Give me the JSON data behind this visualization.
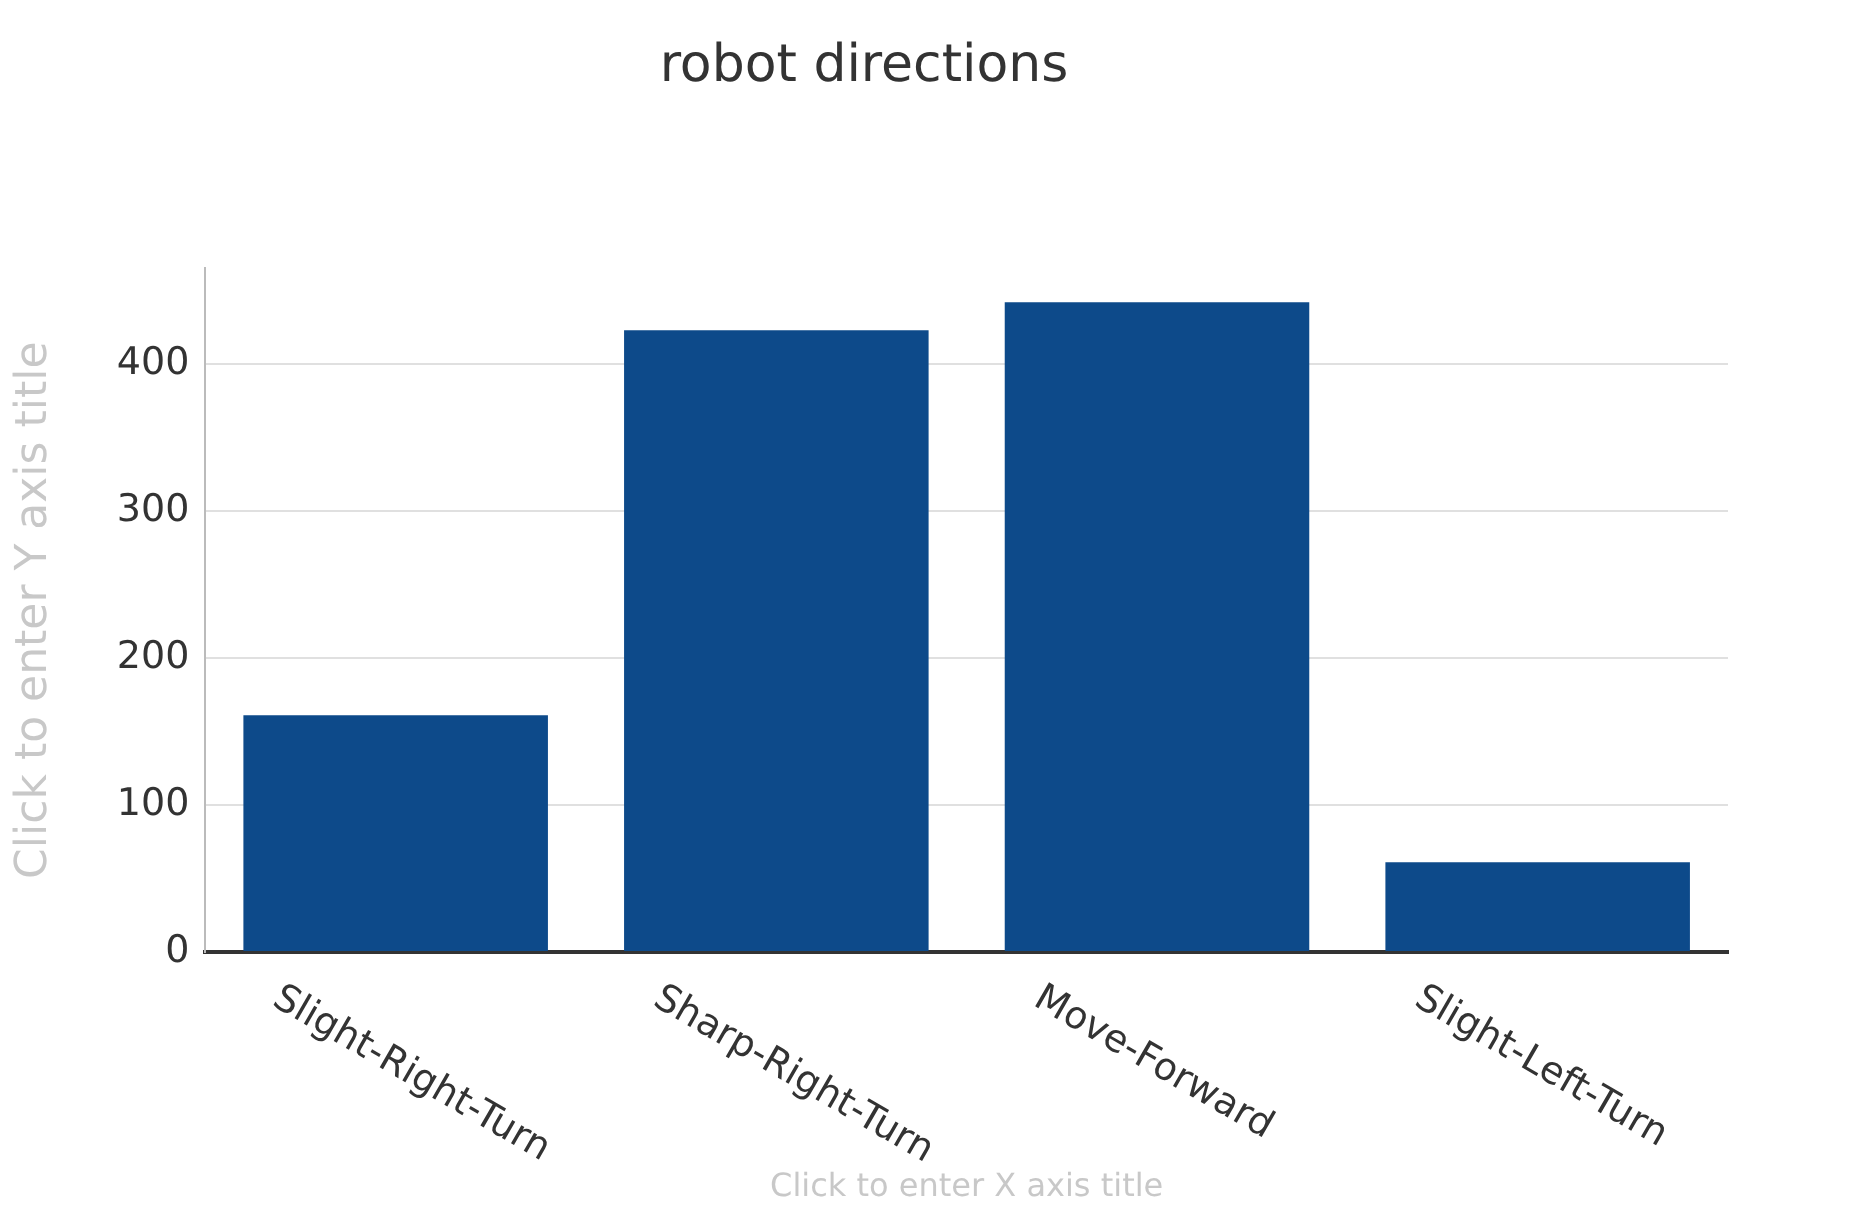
{
  "chart_data": {
    "type": "bar",
    "title": "robot directions",
    "xlabel": "Click to enter X axis title",
    "ylabel": "Click to enter Y axis title",
    "categories": [
      "Slight-Right-Turn",
      "Sharp-Right-Turn",
      "Move-Forward",
      "Slight-Left-Turn"
    ],
    "values": [
      161,
      423,
      442,
      61
    ],
    "color": "#0d4a8a",
    "ylim": [
      0,
      465
    ],
    "yticks": [
      0,
      100,
      200,
      300,
      400
    ],
    "grid": "y"
  }
}
